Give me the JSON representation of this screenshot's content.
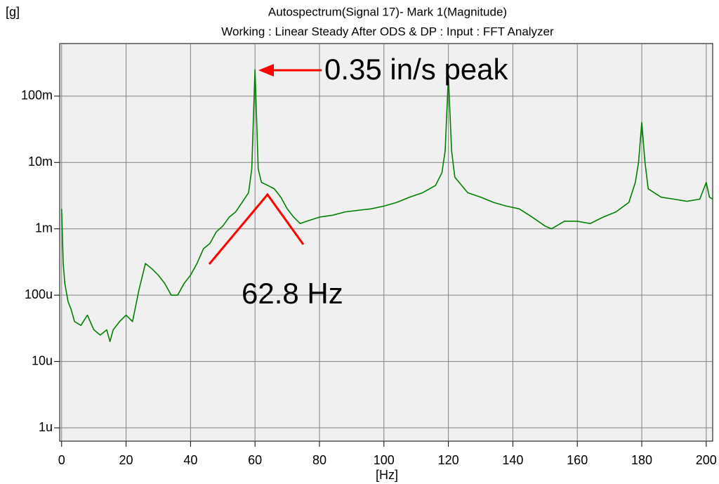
{
  "chart_data": {
    "type": "line",
    "title": "Autospectrum(Signal 17)-  Mark 1(Magnitude)",
    "subtitle": "Working : Linear Steady After ODS & DP : Input : FFT Analyzer",
    "y_label": "[g]",
    "x_label": "[Hz]",
    "log_y": true,
    "grid": true,
    "xlim": [
      -0.6,
      202
    ],
    "ylim": [
      6.3e-07,
      0.62
    ],
    "xticks": [
      0,
      20,
      40,
      60,
      80,
      100,
      120,
      140,
      160,
      180,
      200
    ],
    "yticks": [
      {
        "value": 1e-06,
        "label": "1u"
      },
      {
        "value": 1e-05,
        "label": "10u"
      },
      {
        "value": 0.0001,
        "label": "100u"
      },
      {
        "value": 0.001,
        "label": "1m"
      },
      {
        "value": 0.01,
        "label": "10m"
      },
      {
        "value": 0.1,
        "label": "100m"
      }
    ],
    "x": [
      0,
      0.5,
      1,
      2,
      3,
      4,
      6,
      8,
      10,
      12,
      14,
      15,
      16,
      18,
      20,
      22,
      24,
      26,
      28,
      30,
      32,
      34,
      36,
      38,
      40,
      42,
      44,
      46,
      48,
      50,
      52,
      54,
      56,
      58,
      59,
      60,
      61,
      62,
      64,
      66,
      68,
      70,
      72,
      74,
      76,
      80,
      84,
      88,
      92,
      96,
      100,
      104,
      108,
      112,
      116,
      118,
      119,
      120,
      121,
      122,
      126,
      130,
      134,
      138,
      142,
      146,
      150,
      152,
      156,
      160,
      164,
      168,
      172,
      176,
      178,
      179,
      180,
      181,
      182,
      186,
      190,
      194,
      198,
      200,
      201,
      202
    ],
    "series": [
      {
        "name": "Autospectrum(Signal 17)",
        "color": "#008000",
        "values": [
          0.002,
          0.0003,
          0.00015,
          8e-05,
          6e-05,
          4e-05,
          3.5e-05,
          5e-05,
          3e-05,
          2.5e-05,
          3e-05,
          2e-05,
          3e-05,
          4e-05,
          5e-05,
          4e-05,
          0.00012,
          0.0003,
          0.00025,
          0.0002,
          0.00015,
          0.0001,
          0.0001,
          0.00015,
          0.0002,
          0.0003,
          0.0005,
          0.0006,
          0.0009,
          0.0011,
          0.0015,
          0.0018,
          0.0025,
          0.0035,
          0.008,
          0.25,
          0.008,
          0.005,
          0.0045,
          0.004,
          0.003,
          0.002,
          0.0015,
          0.0012,
          0.0013,
          0.0015,
          0.0016,
          0.0018,
          0.0019,
          0.002,
          0.0022,
          0.0025,
          0.003,
          0.0035,
          0.0045,
          0.007,
          0.015,
          0.2,
          0.015,
          0.006,
          0.0035,
          0.003,
          0.0025,
          0.0022,
          0.002,
          0.0015,
          0.0011,
          0.001,
          0.0013,
          0.0013,
          0.0012,
          0.0015,
          0.0018,
          0.0025,
          0.005,
          0.01,
          0.04,
          0.01,
          0.004,
          0.003,
          0.0028,
          0.0026,
          0.0028,
          0.005,
          0.003,
          0.0028
        ]
      }
    ],
    "annotations": [
      "0.35 in/s peak",
      "62.8 Hz"
    ]
  }
}
